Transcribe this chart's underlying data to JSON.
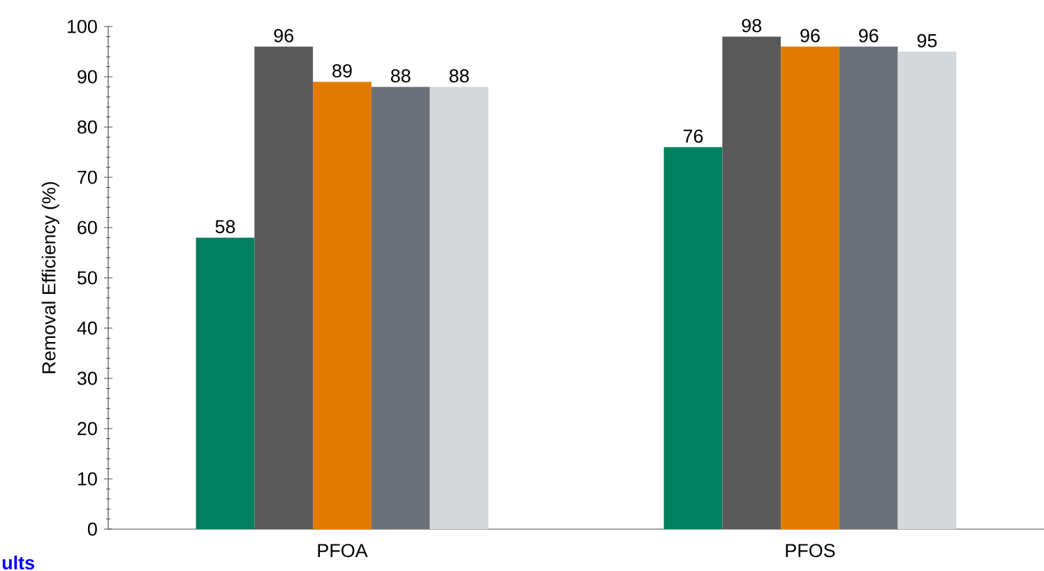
{
  "chart_data": {
    "type": "bar",
    "ylabel": "Removal Efficiency (%)",
    "categories": [
      "PFOA",
      "PFOS"
    ],
    "series": [
      {
        "color": "#00805f",
        "values": [
          58,
          76
        ]
      },
      {
        "color": "#595959",
        "values": [
          96,
          98
        ]
      },
      {
        "color": "#e07b00",
        "values": [
          89,
          96
        ]
      },
      {
        "color": "#6b7079",
        "values": [
          88,
          96
        ]
      },
      {
        "color": "#d4d8db",
        "values": [
          88,
          95
        ]
      }
    ],
    "ylim": [
      0,
      100
    ],
    "yticks": [
      0,
      10,
      20,
      30,
      40,
      50,
      60,
      70,
      80,
      90,
      100
    ],
    "data_labels": true,
    "annotations": [
      "ults"
    ]
  }
}
